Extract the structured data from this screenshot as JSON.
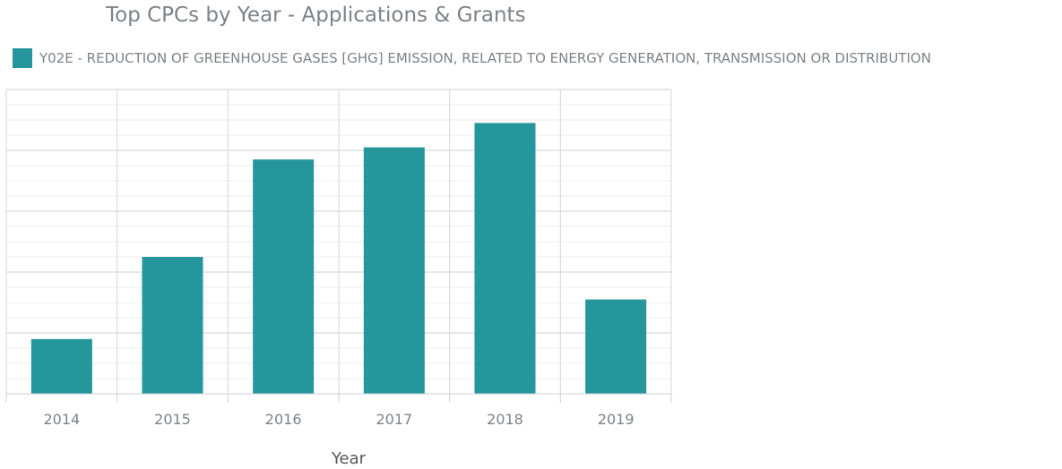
{
  "chart_data": {
    "type": "bar",
    "title": "Top CPCs by Year - Applications & Grants",
    "xlabel": "Year",
    "ylabel": "",
    "categories": [
      "2014",
      "2015",
      "2016",
      "2017",
      "2018",
      "2019"
    ],
    "series": [
      {
        "name": "Y02E - REDUCTION OF GREENHOUSE GASES [GHG] EMISSION, RELATED TO ENERGY GENERATION, TRANSMISSION OR DISTRIBUTION",
        "values": [
          18,
          45,
          77,
          81,
          89,
          31
        ]
      }
    ],
    "ylim": [
      0,
      100
    ],
    "grid": true,
    "legend": "top-left",
    "color": "#26969d"
  }
}
